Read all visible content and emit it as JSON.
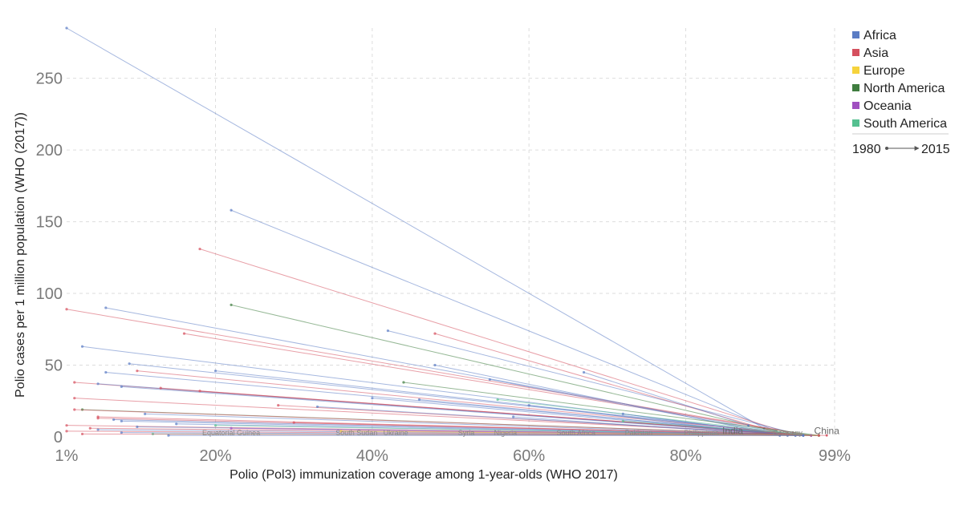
{
  "chart_data": {
    "type": "scatter",
    "subtype": "connected-arrows",
    "ylabel": "Polio cases per 1 million population (WHO (2017))",
    "xlabel": "Polio (Pol3) immunization coverage among 1-year-olds (WHO 2017)",
    "x_ticks": [
      {
        "value": 1,
        "label": "1%"
      },
      {
        "value": 20,
        "label": "20%"
      },
      {
        "value": 40,
        "label": "40%"
      },
      {
        "value": 60,
        "label": "60%"
      },
      {
        "value": 80,
        "label": "80%"
      },
      {
        "value": 99,
        "label": "99%"
      }
    ],
    "y_ticks": [
      {
        "value": 0,
        "label": "0"
      },
      {
        "value": 50,
        "label": "50"
      },
      {
        "value": 100,
        "label": "100"
      },
      {
        "value": 150,
        "label": "150"
      },
      {
        "value": 200,
        "label": "200"
      },
      {
        "value": 250,
        "label": "250"
      }
    ],
    "xlim": [
      1,
      99
    ],
    "ylim": [
      0,
      285
    ],
    "grid": true,
    "legend_position": "right",
    "legend": [
      {
        "name": "Africa",
        "color": "#5b7cc4"
      },
      {
        "name": "Asia",
        "color": "#d5505e"
      },
      {
        "name": "Europe",
        "color": "#f6d33c"
      },
      {
        "name": "North America",
        "color": "#3f7d3f"
      },
      {
        "name": "Oceania",
        "color": "#a050c0"
      },
      {
        "name": "South America",
        "color": "#55c090"
      }
    ],
    "time_legend": {
      "start": "1980",
      "end": "2015"
    },
    "labels": [
      {
        "text": "Equatorial Guinea",
        "x": 22,
        "y": 1,
        "size": "small"
      },
      {
        "text": "South Sudan",
        "x": 38,
        "y": 1,
        "size": "small"
      },
      {
        "text": "Ukraine",
        "x": 43,
        "y": 1,
        "size": "small"
      },
      {
        "text": "Syria",
        "x": 52,
        "y": 1,
        "size": "small"
      },
      {
        "text": "Nigeria",
        "x": 57,
        "y": 1,
        "size": "small"
      },
      {
        "text": "South Africa",
        "x": 66,
        "y": 1,
        "size": "small"
      },
      {
        "text": "Pakistan",
        "x": 74,
        "y": 1,
        "size": "small"
      },
      {
        "text": "Philippines",
        "x": 82,
        "y": 1,
        "size": "small"
      },
      {
        "text": "India",
        "x": 86,
        "y": 2,
        "size": "big"
      },
      {
        "text": "Germany",
        "x": 93,
        "y": 1,
        "size": "small"
      },
      {
        "text": "China",
        "x": 98,
        "y": 2,
        "size": "big"
      }
    ],
    "series": [
      {
        "continent": "Africa",
        "points": [
          [
            1,
            285
          ],
          [
            90,
            6
          ]
        ]
      },
      {
        "continent": "Africa",
        "points": [
          [
            22,
            158
          ],
          [
            92,
            3
          ]
        ]
      },
      {
        "continent": "Asia",
        "points": [
          [
            18,
            131
          ],
          [
            93,
            3
          ]
        ]
      },
      {
        "continent": "North America",
        "points": [
          [
            22,
            92
          ],
          [
            93,
            2
          ]
        ]
      },
      {
        "continent": "Africa",
        "points": [
          [
            6,
            90
          ],
          [
            94,
            1
          ]
        ]
      },
      {
        "continent": "Asia",
        "points": [
          [
            1,
            89
          ],
          [
            96,
            1
          ]
        ]
      },
      {
        "continent": "Africa",
        "points": [
          [
            42,
            74
          ],
          [
            95,
            1
          ]
        ]
      },
      {
        "continent": "Asia",
        "points": [
          [
            16,
            72
          ],
          [
            96,
            1
          ]
        ]
      },
      {
        "continent": "Asia",
        "points": [
          [
            48,
            72
          ],
          [
            93,
            1
          ]
        ]
      },
      {
        "continent": "Africa",
        "points": [
          [
            3,
            63
          ],
          [
            94,
            1
          ]
        ]
      },
      {
        "continent": "Africa",
        "points": [
          [
            9,
            51
          ],
          [
            95,
            1
          ]
        ]
      },
      {
        "continent": "Africa",
        "points": [
          [
            48,
            50
          ],
          [
            92,
            1
          ]
        ]
      },
      {
        "continent": "Africa",
        "points": [
          [
            20,
            46
          ],
          [
            95,
            1
          ]
        ]
      },
      {
        "continent": "Asia",
        "points": [
          [
            10,
            46
          ],
          [
            96,
            1
          ]
        ]
      },
      {
        "continent": "Africa",
        "points": [
          [
            6,
            45
          ],
          [
            95,
            1
          ]
        ]
      },
      {
        "continent": "Africa",
        "points": [
          [
            67,
            45
          ],
          [
            88,
            8
          ]
        ]
      },
      {
        "continent": "Africa",
        "points": [
          [
            55,
            40
          ],
          [
            93,
            1
          ]
        ]
      },
      {
        "continent": "North America",
        "points": [
          [
            44,
            38
          ],
          [
            97,
            1
          ]
        ]
      },
      {
        "continent": "Asia",
        "points": [
          [
            2,
            38
          ],
          [
            96,
            1
          ]
        ]
      },
      {
        "continent": "Africa",
        "points": [
          [
            5,
            37
          ],
          [
            95,
            1
          ]
        ]
      },
      {
        "continent": "Africa",
        "points": [
          [
            8,
            35
          ],
          [
            95,
            1
          ]
        ]
      },
      {
        "continent": "Asia",
        "points": [
          [
            13,
            34
          ],
          [
            96,
            1
          ]
        ]
      },
      {
        "continent": "Asia",
        "points": [
          [
            18,
            32
          ],
          [
            96,
            1
          ]
        ]
      },
      {
        "continent": "Asia",
        "points": [
          [
            2,
            27
          ],
          [
            97,
            1
          ]
        ]
      },
      {
        "continent": "Africa",
        "points": [
          [
            40,
            27
          ],
          [
            94,
            1
          ]
        ]
      },
      {
        "continent": "Africa",
        "points": [
          [
            46,
            26
          ],
          [
            94,
            1
          ]
        ]
      },
      {
        "continent": "South America",
        "points": [
          [
            56,
            26
          ],
          [
            96,
            1
          ]
        ]
      },
      {
        "continent": "Africa",
        "points": [
          [
            60,
            22
          ],
          [
            92,
            1
          ]
        ]
      },
      {
        "continent": "Asia",
        "points": [
          [
            28,
            22
          ],
          [
            96,
            1
          ]
        ]
      },
      {
        "continent": "Africa",
        "points": [
          [
            33,
            21
          ],
          [
            95,
            1
          ]
        ]
      },
      {
        "continent": "North America",
        "points": [
          [
            3,
            19
          ],
          [
            97,
            1
          ]
        ]
      },
      {
        "continent": "Asia",
        "points": [
          [
            2,
            19
          ],
          [
            97,
            1
          ]
        ]
      },
      {
        "continent": "Africa",
        "points": [
          [
            72,
            16
          ],
          [
            93,
            1
          ]
        ]
      },
      {
        "continent": "Africa",
        "points": [
          [
            11,
            16
          ],
          [
            95,
            1
          ]
        ]
      },
      {
        "continent": "Asia",
        "points": [
          [
            5,
            14
          ],
          [
            96,
            1
          ]
        ]
      },
      {
        "continent": "Africa",
        "points": [
          [
            58,
            14
          ],
          [
            92,
            1
          ]
        ]
      },
      {
        "continent": "Asia",
        "points": [
          [
            5,
            13
          ],
          [
            97,
            1
          ]
        ]
      },
      {
        "continent": "Africa",
        "points": [
          [
            7,
            12
          ],
          [
            96,
            1
          ]
        ]
      },
      {
        "continent": "South America",
        "points": [
          [
            72,
            11
          ],
          [
            97,
            1
          ]
        ]
      },
      {
        "continent": "Africa",
        "points": [
          [
            8,
            11
          ],
          [
            94,
            1
          ]
        ]
      },
      {
        "continent": "Asia",
        "points": [
          [
            30,
            10
          ],
          [
            97,
            1
          ]
        ]
      },
      {
        "continent": "Africa",
        "points": [
          [
            15,
            9
          ],
          [
            95,
            1
          ]
        ]
      },
      {
        "continent": "Asia",
        "points": [
          [
            1,
            8
          ],
          [
            97,
            1
          ]
        ]
      },
      {
        "continent": "South America",
        "points": [
          [
            20,
            8
          ],
          [
            97,
            1
          ]
        ]
      },
      {
        "continent": "Africa",
        "points": [
          [
            10,
            7
          ],
          [
            95,
            1
          ]
        ]
      },
      {
        "continent": "Asia",
        "points": [
          [
            4,
            6
          ],
          [
            97,
            1
          ]
        ]
      },
      {
        "continent": "Oceania",
        "points": [
          [
            22,
            6
          ],
          [
            96,
            1
          ]
        ]
      },
      {
        "continent": "Africa",
        "points": [
          [
            5,
            5
          ],
          [
            95,
            1
          ]
        ]
      },
      {
        "continent": "Asia",
        "points": [
          [
            1,
            4
          ],
          [
            98,
            1
          ]
        ]
      },
      {
        "continent": "Europe",
        "points": [
          [
            36,
            4
          ],
          [
            97,
            1
          ]
        ]
      },
      {
        "continent": "Africa",
        "points": [
          [
            8,
            3
          ],
          [
            95,
            1
          ]
        ]
      },
      {
        "continent": "South America",
        "points": [
          [
            12,
            2
          ],
          [
            97,
            1
          ]
        ]
      },
      {
        "continent": "Asia",
        "points": [
          [
            3,
            2
          ],
          [
            97,
            1
          ]
        ]
      },
      {
        "continent": "Africa",
        "points": [
          [
            14,
            1
          ],
          [
            95,
            1
          ]
        ]
      }
    ]
  }
}
